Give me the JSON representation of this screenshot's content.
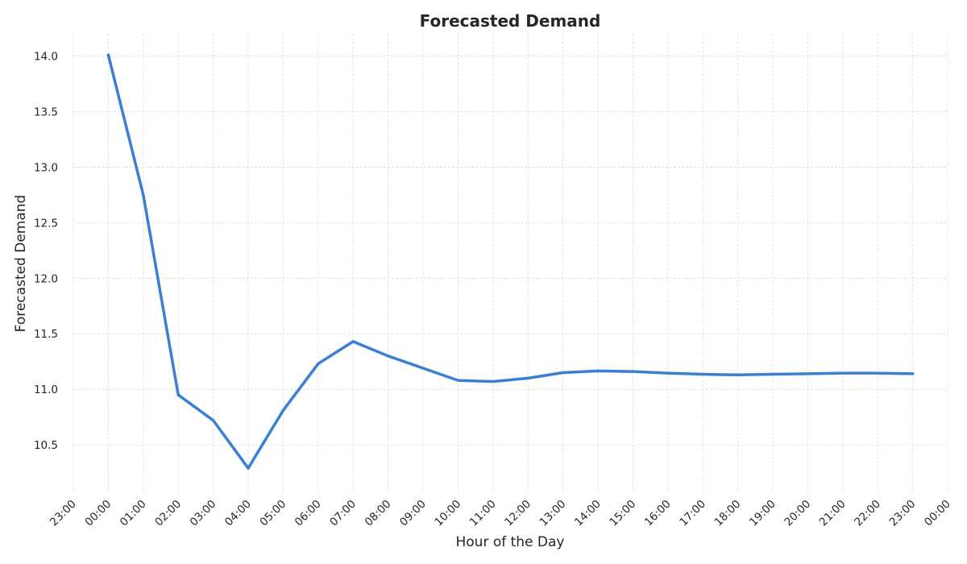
{
  "chart_data": {
    "type": "line",
    "title": "Forecasted Demand",
    "xlabel": "Hour of the Day",
    "ylabel": "Forecasted Demand",
    "x_tick_labels": [
      "23:00",
      "00:00",
      "01:00",
      "02:00",
      "03:00",
      "04:00",
      "05:00",
      "06:00",
      "07:00",
      "08:00",
      "09:00",
      "10:00",
      "11:00",
      "12:00",
      "13:00",
      "14:00",
      "15:00",
      "16:00",
      "17:00",
      "18:00",
      "19:00",
      "20:00",
      "21:00",
      "22:00",
      "23:00",
      "00:00"
    ],
    "y_ticks": [
      "10.5",
      "11.0",
      "11.5",
      "12.0",
      "12.5",
      "13.0",
      "13.5",
      "14.0"
    ],
    "ylim": [
      10.08,
      14.2
    ],
    "grid": true,
    "series": [
      {
        "color": "#3a7fd5",
        "x": [
          "00:00",
          "01:00",
          "02:00",
          "03:00",
          "04:00",
          "05:00",
          "06:00",
          "07:00",
          "08:00",
          "09:00",
          "10:00",
          "11:00",
          "12:00",
          "13:00",
          "14:00",
          "15:00",
          "16:00",
          "17:00",
          "18:00",
          "19:00",
          "20:00",
          "21:00",
          "22:00",
          "23:00"
        ],
        "values": [
          14.01,
          12.75,
          10.95,
          10.72,
          10.29,
          10.81,
          11.23,
          11.43,
          11.3,
          11.19,
          11.08,
          11.07,
          11.1,
          11.15,
          11.165,
          11.16,
          11.145,
          11.135,
          11.13,
          11.135,
          11.14,
          11.145,
          11.145,
          11.14
        ]
      }
    ]
  }
}
